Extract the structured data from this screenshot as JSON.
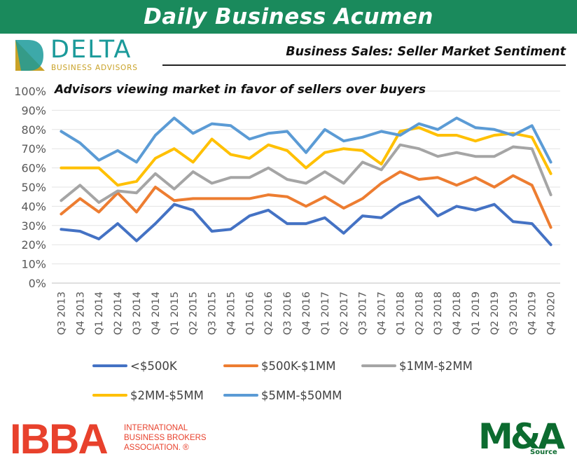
{
  "banner": {
    "title": "Daily Business Acumen",
    "color": "#1a8a5c"
  },
  "delta_logo": {
    "name": "DELTA",
    "tagline": "BUSINESS ADVISORS"
  },
  "subtitle": "Business Sales: Seller Market Sentiment",
  "chart_data": {
    "type": "line",
    "title": "Advisors viewing market in favor of sellers over buyers",
    "xlabel": "",
    "ylabel": "",
    "ylim": [
      0,
      100
    ],
    "yticks": [
      "0%",
      "10%",
      "20%",
      "30%",
      "40%",
      "50%",
      "60%",
      "70%",
      "80%",
      "90%",
      "100%"
    ],
    "grid": "horizontal",
    "legend_position": "bottom",
    "categories": [
      "Q3 2013",
      "Q4 2013",
      "Q1 2014",
      "Q2 2014",
      "Q3 2014",
      "Q4 2014",
      "Q1 2015",
      "Q2 2015",
      "Q3 2015",
      "Q4 2015",
      "Q1 2016",
      "Q2 2016",
      "Q3 2016",
      "Q4 2016",
      "Q1 2017",
      "Q2 2017",
      "Q3 2017",
      "Q4 2017",
      "Q1 2018",
      "Q2 2018",
      "Q3 2018",
      "Q4 2018",
      "Q1 2019",
      "Q2 2019",
      "Q3 2019",
      "Q4 2019",
      "Q4 2020"
    ],
    "series": [
      {
        "name": "<$500K",
        "color": "#4472c4",
        "values": [
          28,
          27,
          23,
          31,
          22,
          31,
          41,
          38,
          27,
          28,
          35,
          38,
          31,
          31,
          34,
          26,
          35,
          34,
          41,
          45,
          35,
          40,
          38,
          41,
          32,
          31,
          20
        ]
      },
      {
        "name": "$500K-$1MM",
        "color": "#ed7d31",
        "values": [
          36,
          44,
          37,
          47,
          37,
          50,
          43,
          44,
          44,
          44,
          44,
          46,
          45,
          40,
          45,
          39,
          44,
          52,
          58,
          54,
          55,
          51,
          55,
          50,
          56,
          51,
          29
        ]
      },
      {
        "name": "$1MM-$2MM",
        "color": "#a5a5a5",
        "values": [
          43,
          51,
          42,
          48,
          47,
          57,
          49,
          58,
          52,
          55,
          55,
          60,
          54,
          52,
          58,
          52,
          63,
          59,
          72,
          70,
          66,
          68,
          66,
          66,
          71,
          70,
          46
        ]
      },
      {
        "name": "$2MM-$5MM",
        "color": "#ffc000",
        "values": [
          60,
          60,
          60,
          51,
          53,
          65,
          70,
          63,
          75,
          67,
          65,
          72,
          69,
          60,
          68,
          70,
          69,
          62,
          79,
          81,
          77,
          77,
          74,
          77,
          78,
          76,
          57
        ]
      },
      {
        "name": "$5MM-$50MM",
        "color": "#5b9bd5",
        "values": [
          79,
          73,
          64,
          69,
          63,
          77,
          86,
          78,
          83,
          82,
          75,
          78,
          79,
          68,
          80,
          74,
          76,
          79,
          77,
          83,
          80,
          86,
          81,
          80,
          77,
          82,
          63
        ]
      }
    ]
  },
  "ibba_logo": {
    "acronym": "IBBA",
    "lines": [
      "INTERNATIONAL",
      "BUSINESS BROKERS",
      "ASSOCIATION. ®"
    ]
  },
  "ma_logo": {
    "mark": "M&A",
    "source": "Source"
  }
}
